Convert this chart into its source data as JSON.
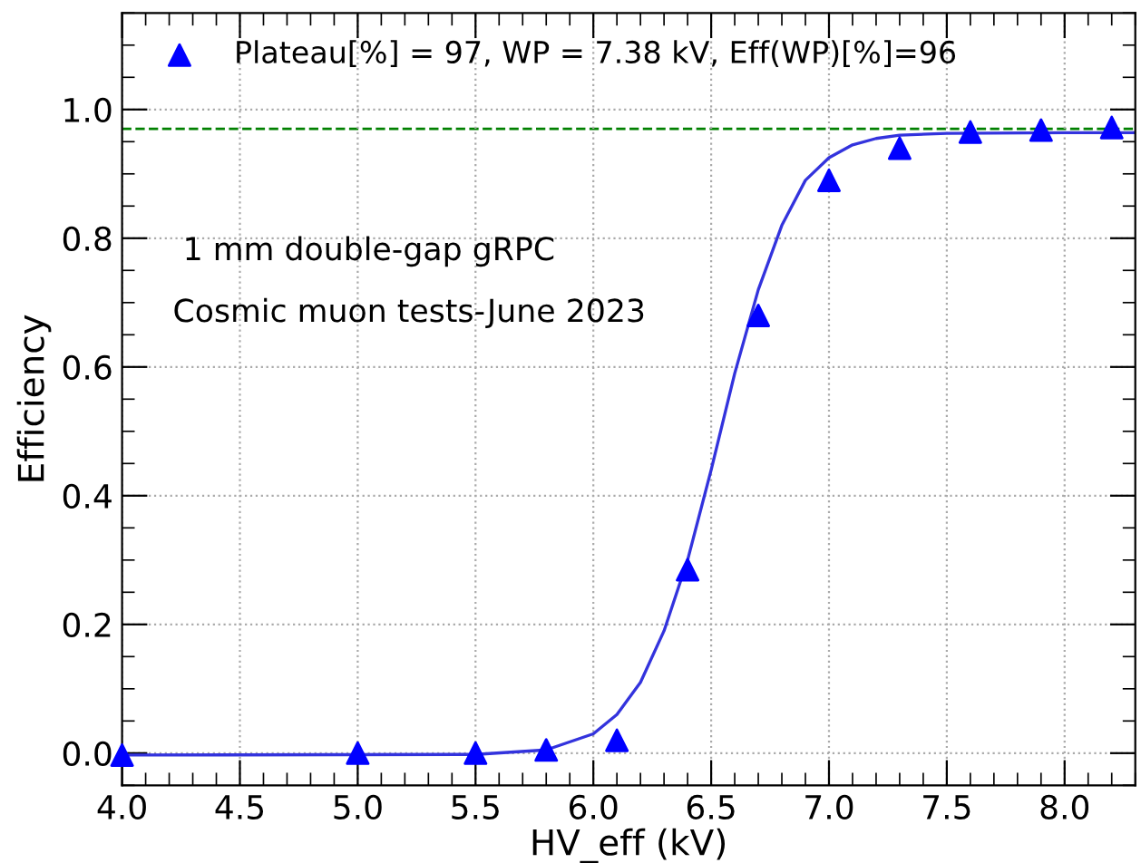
{
  "chart_data": {
    "type": "scatter",
    "xlabel": "HV_eff (kV)",
    "ylabel": "Efficiency",
    "xlim": [
      4.0,
      8.3
    ],
    "ylim": [
      -0.05,
      1.15
    ],
    "xticks": [
      {
        "value": 4.0,
        "label": "4.0"
      },
      {
        "value": 4.5,
        "label": "4.5"
      },
      {
        "value": 5.0,
        "label": "5.0"
      },
      {
        "value": 5.5,
        "label": "5.5"
      },
      {
        "value": 6.0,
        "label": "6.0"
      },
      {
        "value": 6.5,
        "label": "6.5"
      },
      {
        "value": 7.0,
        "label": "7.0"
      },
      {
        "value": 7.5,
        "label": "7.5"
      },
      {
        "value": 8.0,
        "label": "8.0"
      }
    ],
    "yticks": [
      {
        "value": 0,
        "label": "0.0"
      },
      {
        "value": 0.2,
        "label": "0.2"
      },
      {
        "value": 0.4,
        "label": "0.4"
      },
      {
        "value": 0.6,
        "label": "0.6"
      },
      {
        "value": 0.8,
        "label": "0.8"
      },
      {
        "value": 1.0,
        "label": "1.0"
      }
    ],
    "grid": true,
    "legend": "top left",
    "series": [
      {
        "name": "Plateau[%] = 97, WP = 7.38 kV, Eff(WP)[%]=96",
        "marker": "triangle",
        "color": "#0000ff",
        "x": [
          4.0,
          5.0,
          5.5,
          5.8,
          6.1,
          6.4,
          6.7,
          7.0,
          7.3,
          7.6,
          7.9,
          8.2
        ],
        "values": [
          -0.003,
          0,
          0,
          0.005,
          0.02,
          0.285,
          0.68,
          0.89,
          0.94,
          0.965,
          0.968,
          0.972
        ]
      },
      {
        "type": "line",
        "color": "#3333dd",
        "x": [
          4.0,
          5.5,
          5.8,
          6.0,
          6.1,
          6.2,
          6.3,
          6.4,
          6.5,
          6.6,
          6.7,
          6.8,
          6.9,
          7.0,
          7.1,
          7.2,
          7.3,
          7.5,
          8.0,
          8.3
        ],
        "values": [
          -0.003,
          -0.002,
          0.005,
          0.03,
          0.06,
          0.11,
          0.19,
          0.3,
          0.44,
          0.59,
          0.72,
          0.82,
          0.89,
          0.925,
          0.945,
          0.955,
          0.96,
          0.963,
          0.964,
          0.964
        ]
      }
    ],
    "ref_lines": [
      {
        "axis": "y",
        "value": 0.97,
        "color": "#008000",
        "line_style": "dashed"
      }
    ],
    "annotations": [
      "1 mm double-gap gRPC",
      "Cosmic muon tests-June 2023"
    ]
  }
}
